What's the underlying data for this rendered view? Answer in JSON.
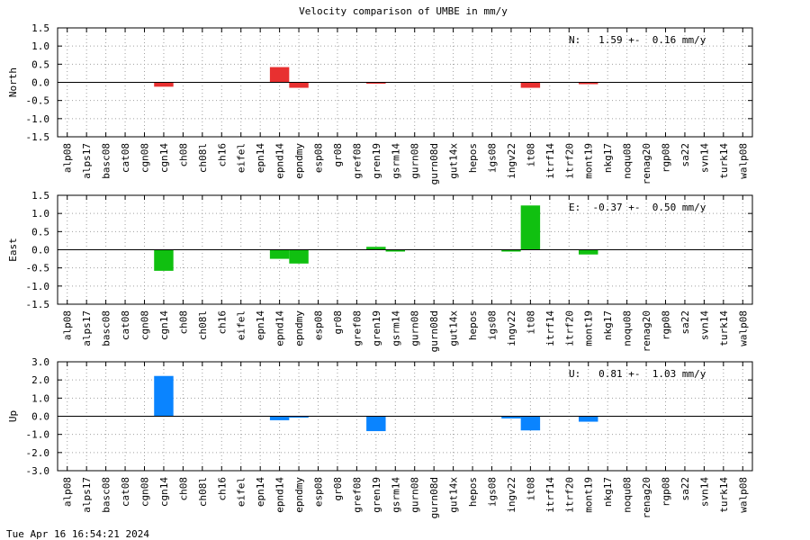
{
  "title": "Velocity comparison of UMBE in mm/y",
  "footer": "Tue Apr 16 16:54:21 2024",
  "chart_data": [
    {
      "type": "bar",
      "ylabel": "North",
      "color": "#e83030",
      "annotation": "N:   1.59 +-  0.16 mm/y",
      "ylim": [
        -1.5,
        1.5
      ],
      "yticks": [
        -1.5,
        -1.0,
        -0.5,
        0.0,
        0.5,
        1.0,
        1.5
      ],
      "ytick_labels": [
        "-1.5",
        "-1.0",
        "-0.5",
        "0.0",
        "0.5",
        "1.0",
        "1.5"
      ],
      "grid": true,
      "categories": [
        "alp08",
        "alps17",
        "basc08",
        "cat08",
        "cgn08",
        "cgn14",
        "ch08",
        "ch08l",
        "ch16",
        "eifel",
        "epn14",
        "epnd14",
        "epndmy",
        "esp08",
        "gr08",
        "gref08",
        "gren19",
        "gsrm14",
        "gurn08",
        "gurn08d",
        "gut14x",
        "hepos",
        "igs08",
        "ingv22",
        "it08",
        "itrf14",
        "itrf20",
        "mont19",
        "nkg17",
        "noqu08",
        "renag20",
        "rgp08",
        "sa22",
        "svn14",
        "turk14",
        "walp08"
      ],
      "values": [
        0,
        0,
        0,
        0,
        0,
        -0.12,
        0,
        0,
        0,
        0,
        0,
        0.42,
        -0.15,
        0,
        0,
        0,
        -0.03,
        0,
        0,
        0,
        0,
        0,
        0,
        0,
        -0.15,
        0,
        0,
        -0.05,
        0,
        0,
        0,
        0,
        0,
        0,
        0,
        0
      ]
    },
    {
      "type": "bar",
      "ylabel": "East",
      "color": "#10c010",
      "annotation": "E:  -0.37 +-  0.50 mm/y",
      "ylim": [
        -1.5,
        1.5
      ],
      "yticks": [
        -1.5,
        -1.0,
        -0.5,
        0.0,
        0.5,
        1.0,
        1.5
      ],
      "ytick_labels": [
        "-1.5",
        "-1.0",
        "-0.5",
        "0.0",
        "0.5",
        "1.0",
        "1.5"
      ],
      "grid": true,
      "categories": [
        "alp08",
        "alps17",
        "basc08",
        "cat08",
        "cgn08",
        "cgn14",
        "ch08",
        "ch08l",
        "ch16",
        "eifel",
        "epn14",
        "epnd14",
        "epndmy",
        "esp08",
        "gr08",
        "gref08",
        "gren19",
        "gsrm14",
        "gurn08",
        "gurn08d",
        "gut14x",
        "hepos",
        "igs08",
        "ingv22",
        "it08",
        "itrf14",
        "itrf20",
        "mont19",
        "nkg17",
        "noqu08",
        "renag20",
        "rgp08",
        "sa22",
        "svn14",
        "turk14",
        "walp08"
      ],
      "values": [
        0,
        0,
        0,
        0,
        0,
        -0.58,
        0,
        0,
        0,
        0,
        0,
        -0.25,
        -0.38,
        0,
        0,
        0,
        0.08,
        -0.05,
        0,
        0,
        0,
        0,
        0,
        -0.05,
        1.22,
        0,
        0,
        -0.13,
        0,
        0,
        0,
        0,
        0,
        0,
        0,
        0
      ]
    },
    {
      "type": "bar",
      "ylabel": "Up",
      "color": "#0a84ff",
      "annotation": "U:   0.81 +-  1.03 mm/y",
      "ylim": [
        -3.0,
        3.0
      ],
      "yticks": [
        -3.0,
        -2.0,
        -1.0,
        0.0,
        1.0,
        2.0,
        3.0
      ],
      "ytick_labels": [
        "-3.0",
        "-2.0",
        "-1.0",
        "0.0",
        "1.0",
        "2.0",
        "3.0"
      ],
      "grid": true,
      "categories": [
        "alp08",
        "alps17",
        "basc08",
        "cat08",
        "cgn08",
        "cgn14",
        "ch08",
        "ch08l",
        "ch16",
        "eifel",
        "epn14",
        "epnd14",
        "epndmy",
        "esp08",
        "gr08",
        "gref08",
        "gren19",
        "gsrm14",
        "gurn08",
        "gurn08d",
        "gut14x",
        "hepos",
        "igs08",
        "ingv22",
        "it08",
        "itrf14",
        "itrf20",
        "mont19",
        "nkg17",
        "noqu08",
        "renag20",
        "rgp08",
        "sa22",
        "svn14",
        "turk14",
        "walp08"
      ],
      "values": [
        0,
        0,
        0,
        0,
        0,
        2.22,
        0,
        0,
        0,
        0,
        0,
        -0.22,
        -0.08,
        0,
        0,
        0,
        -0.82,
        0,
        0,
        0,
        0,
        0,
        0,
        -0.12,
        -0.78,
        0,
        0,
        -0.3,
        0,
        0,
        0,
        0,
        0,
        0,
        0,
        0
      ]
    }
  ]
}
